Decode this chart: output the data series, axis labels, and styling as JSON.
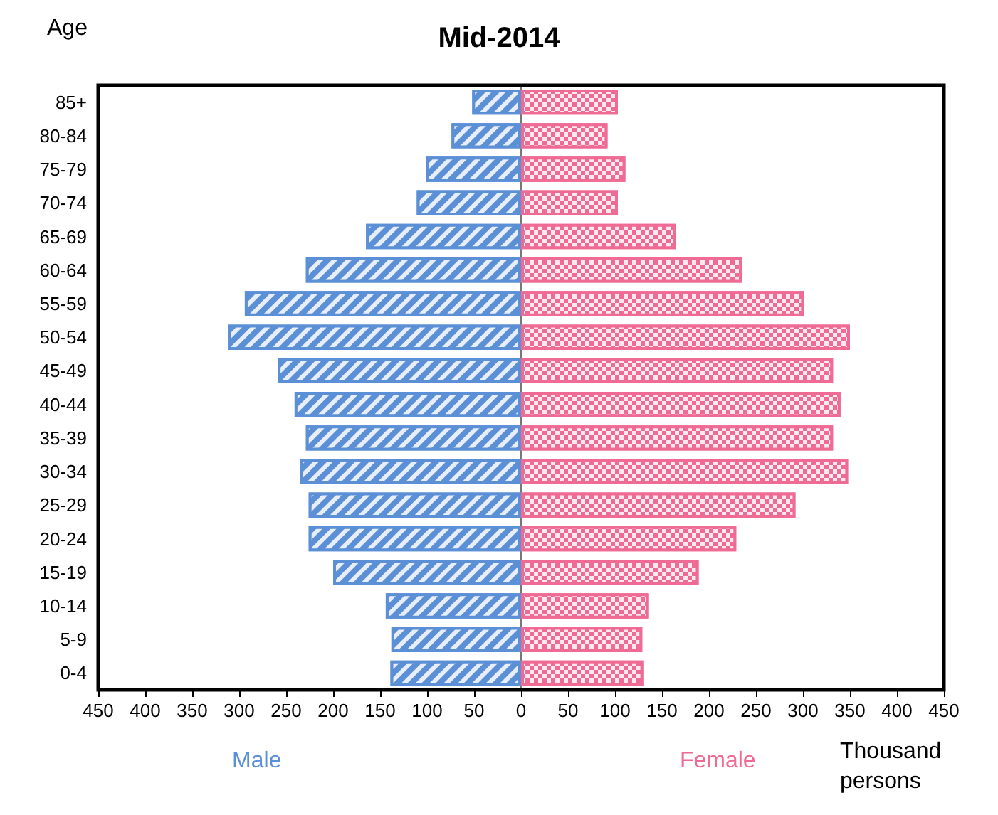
{
  "chart_data": {
    "type": "bar",
    "orientation": "horizontal",
    "title": "Mid-2014",
    "ylabel": "Age",
    "xlabel": "Thousand persons",
    "categories": [
      "85+",
      "80-84",
      "75-79",
      "70-74",
      "65-69",
      "60-64",
      "55-59",
      "50-54",
      "45-49",
      "40-44",
      "35-39",
      "30-34",
      "25-29",
      "20-24",
      "15-19",
      "10-14",
      "5-9",
      "0-4"
    ],
    "series": [
      {
        "name": "Male",
        "color": "#5b8fd6",
        "values": [
          -52,
          -74,
          -101,
          -111,
          -165,
          -229,
          -294,
          -312,
          -259,
          -241,
          -229,
          -235,
          -226,
          -226,
          -200,
          -144,
          -138,
          -139
        ]
      },
      {
        "name": "Female",
        "color": "#f06b94",
        "values": [
          103,
          92,
          111,
          103,
          165,
          235,
          301,
          350,
          332,
          340,
          332,
          348,
          292,
          229,
          189,
          136,
          129,
          130
        ]
      }
    ],
    "xlim": [
      -450,
      450
    ],
    "xticks": [
      {
        "value": -450,
        "label": "450"
      },
      {
        "value": -400,
        "label": "400"
      },
      {
        "value": -350,
        "label": "350"
      },
      {
        "value": -300,
        "label": "300"
      },
      {
        "value": -250,
        "label": "250"
      },
      {
        "value": -200,
        "label": "200"
      },
      {
        "value": -150,
        "label": "150"
      },
      {
        "value": -100,
        "label": "100"
      },
      {
        "value": -50,
        "label": "50"
      },
      0,
      50,
      100,
      150,
      200,
      250,
      300,
      350,
      400,
      450
    ],
    "stacked": true,
    "legend": "bottom"
  }
}
